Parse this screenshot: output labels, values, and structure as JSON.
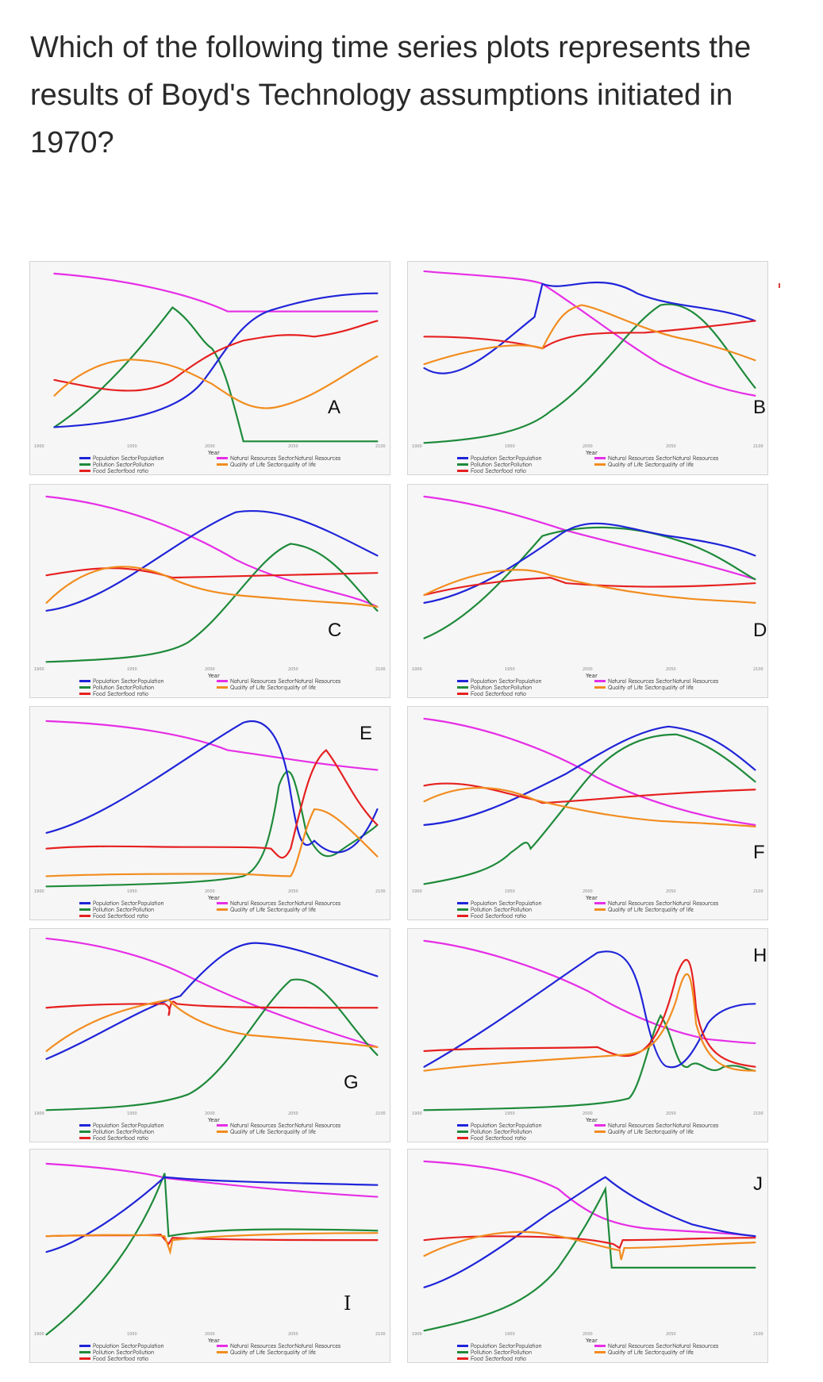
{
  "question": "Which of the following time series plots represents the results of Boyd's Technology assumptions initiated in 1970?",
  "colors": {
    "population": "#1f24d8",
    "pollution": "#1e8a3a",
    "food": "#e62020",
    "natural_resources": "#e62ee6",
    "quality_of_life": "#f28c1e"
  },
  "axis": {
    "x_ticks": [
      "1900",
      "1950",
      "2000",
      "2050",
      "2100"
    ],
    "x_title": "Year"
  },
  "legend": {
    "left": [
      "Population Sector.Population",
      "Pollution Sector.Pollution",
      "Food Sector.food ratio"
    ],
    "right": [
      "Natural Resources Sector.Natural Resources",
      "Quality of Life Sector.quality of life"
    ]
  },
  "panels": [
    {
      "letter": "A"
    },
    {
      "letter": "B"
    },
    {
      "letter": "C"
    },
    {
      "letter": "D"
    },
    {
      "letter": "E"
    },
    {
      "letter": "F"
    },
    {
      "letter": "G"
    },
    {
      "letter": "H"
    },
    {
      "letter": "I"
    },
    {
      "letter": "J"
    }
  ]
}
